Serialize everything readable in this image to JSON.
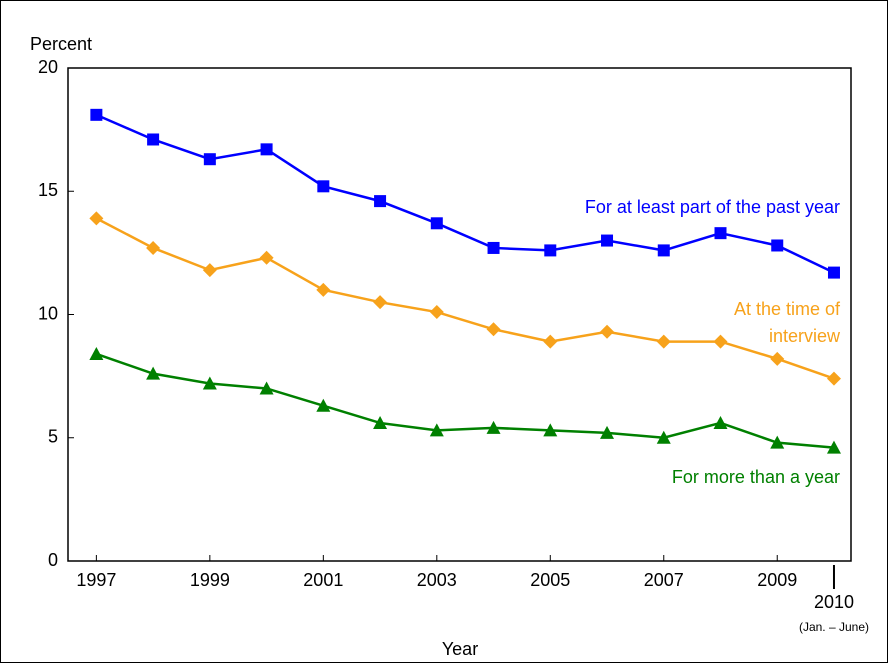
{
  "chart_data": {
    "type": "line",
    "y_label": "Percent",
    "x_label": "Year",
    "x_note": "(Jan. – June)",
    "x": [
      1997,
      1998,
      1999,
      2000,
      2001,
      2002,
      2003,
      2004,
      2005,
      2006,
      2007,
      2008,
      2009,
      2010
    ],
    "series": [
      {
        "name": "For at least part of the past year",
        "color": "#0000ff",
        "marker": "square",
        "values": [
          18.1,
          17.1,
          16.3,
          16.7,
          15.2,
          14.6,
          13.7,
          12.7,
          12.6,
          13.0,
          12.6,
          13.3,
          12.8,
          11.7
        ]
      },
      {
        "name": "At the time of interview",
        "color": "#f7a21b",
        "marker": "diamond",
        "values": [
          13.9,
          12.7,
          11.8,
          12.3,
          11.0,
          10.5,
          10.1,
          9.4,
          8.9,
          9.3,
          8.9,
          8.9,
          8.2,
          7.4
        ]
      },
      {
        "name": "For more than a year",
        "color": "#008000",
        "marker": "triangle",
        "values": [
          8.4,
          7.6,
          7.2,
          7.0,
          6.3,
          5.6,
          5.3,
          5.4,
          5.3,
          5.2,
          5.0,
          5.6,
          4.8,
          4.6
        ]
      }
    ],
    "xlim": [
      1996.5,
      2010.3
    ],
    "xticks": [
      1997,
      1999,
      2001,
      2003,
      2005,
      2007,
      2009,
      2010
    ],
    "ylim": [
      0,
      20
    ],
    "yticks": [
      0,
      5,
      10,
      15,
      20
    ],
    "grid": false
  }
}
